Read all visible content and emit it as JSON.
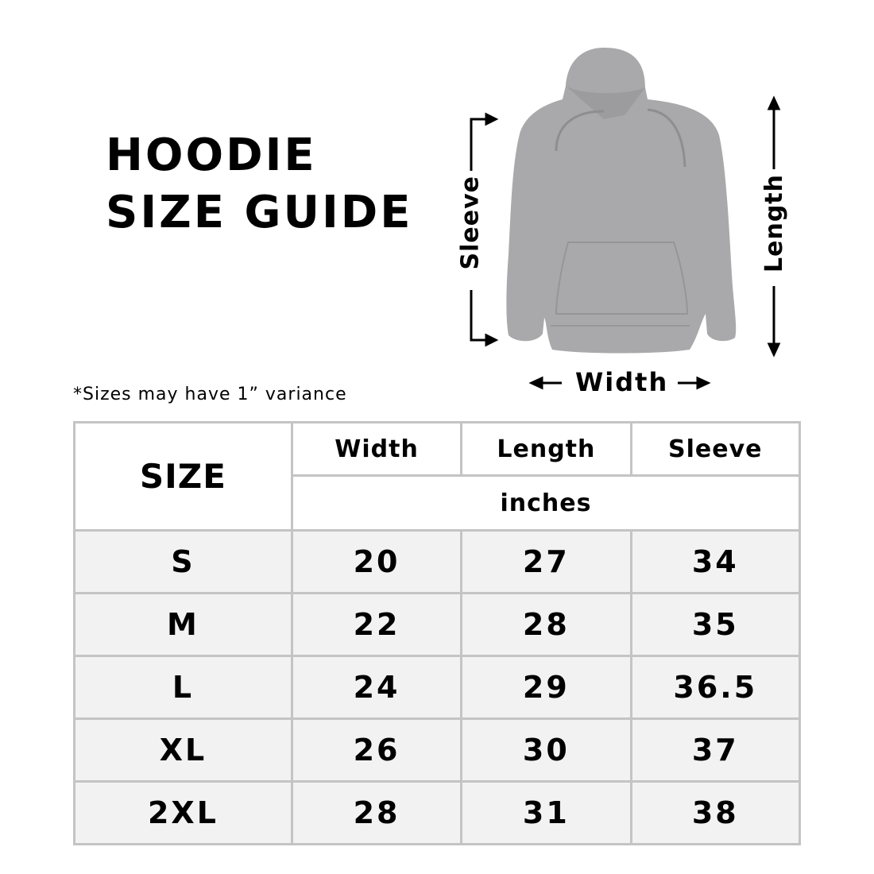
{
  "title": {
    "line1": "HOODIE",
    "line2": "SIZE GUIDE"
  },
  "note": "*Sizes may have 1” variance",
  "diagram": {
    "sleeve": "Sleeve",
    "length": "Length",
    "width": "Width",
    "garment_color": "#a9a9ab"
  },
  "table": {
    "size_header": "SIZE",
    "columns": [
      "Width",
      "Length",
      "Sleeve"
    ],
    "unit": "inches",
    "rows": [
      {
        "size": "S",
        "width": "20",
        "length": "27",
        "sleeve": "34"
      },
      {
        "size": "M",
        "width": "22",
        "length": "28",
        "sleeve": "35"
      },
      {
        "size": "L",
        "width": "24",
        "length": "29",
        "sleeve": "36.5"
      },
      {
        "size": "XL",
        "width": "26",
        "length": "30",
        "sleeve": "37"
      },
      {
        "size": "2XL",
        "width": "28",
        "length": "31",
        "sleeve": "38"
      }
    ],
    "border_color": "#c4c4c4",
    "row_bg": "#f2f2f2"
  }
}
